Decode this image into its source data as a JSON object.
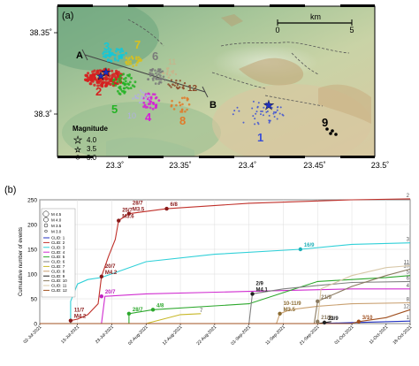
{
  "panel_a": {
    "label": "(a)",
    "lat_ticks": [
      "38.35˚",
      "38.3˚"
    ],
    "lon_ticks": [
      "23.3˚",
      "23.35˚",
      "23.4˚",
      "23.45˚",
      "23.5˚"
    ],
    "scale": {
      "unit": "km",
      "start": "0",
      "end": "5"
    },
    "profile": {
      "start": "A",
      "end": "B"
    },
    "magnitude_legend": {
      "title": "Magnitude",
      "items": [
        "4.0",
        "3.5",
        "3.0",
        "2.0"
      ]
    },
    "cluster_labels": [
      {
        "text": "1",
        "color": "#3a4fd6"
      },
      {
        "text": "2",
        "color": "#d62020"
      },
      {
        "text": "3",
        "color": "#14c8d8"
      },
      {
        "text": "4",
        "color": "#d620d6"
      },
      {
        "text": "5",
        "color": "#23b323"
      },
      {
        "text": "6",
        "color": "#7a7a7a"
      },
      {
        "text": "7",
        "color": "#d8c020"
      },
      {
        "text": "8",
        "color": "#e07a2a"
      },
      {
        "text": "9",
        "color": "#000000"
      },
      {
        "text": "10",
        "color": "#b0b0e0"
      },
      {
        "text": "11",
        "color": "#c9b28a"
      },
      {
        "text": "12",
        "color": "#8a4a2a"
      }
    ]
  },
  "chart_data": {
    "type": "line",
    "panel_label": "(b)",
    "ylabel": "Cumulative number of events",
    "xlabel": "",
    "ylim": [
      0,
      250
    ],
    "yticks": [
      "0",
      "50",
      "100",
      "150",
      "200",
      "250"
    ],
    "x_ticks": [
      "02-Jul-2021",
      "13-Jul-2021",
      "23-Jul-2021",
      "02-Aug-2021",
      "12-Aug-2021",
      "22-Aug-2021",
      "01-Sep-2021",
      "11-Sep-2021",
      "21-Sep-2021",
      "01-Oct-2021",
      "11-Oct-2021",
      "18-Oct-2021"
    ],
    "magnitude_legend": [
      "M 4.5",
      "M 4.0",
      "M 3.5",
      "M 3.0"
    ],
    "cluster_legend": [
      "CLID: 1",
      "CLID: 2",
      "CLID: 3",
      "CLID: 4",
      "CLID: 5",
      "CLID: 6",
      "CLID: 7",
      "CLID: 8",
      "CLID: 9",
      "CLID: 10",
      "CLID: 11",
      "CLID: 12"
    ],
    "series": [
      {
        "name": "CLID: 1",
        "color": "#2030c0",
        "end_label": "1",
        "points": [
          [
            "21-Sep-2021",
            0
          ],
          [
            "01-Oct-2021",
            2
          ],
          [
            "18-Oct-2021",
            5
          ]
        ]
      },
      {
        "name": "CLID: 2",
        "color": "#c0302a",
        "end_label": "2",
        "points": [
          [
            "02-Jul-2021",
            0
          ],
          [
            "11-Jul-2021",
            0
          ],
          [
            "11-Jul-2021",
            6
          ],
          [
            "13-Jul-2021",
            9
          ],
          [
            "16-Jul-2021",
            18
          ],
          [
            "19-Jul-2021",
            40
          ],
          [
            "20-Jul-2021",
            95
          ],
          [
            "22-Jul-2021",
            135
          ],
          [
            "24-Jul-2021",
            170
          ],
          [
            "25-Jul-2021",
            208
          ],
          [
            "28-Jul-2021",
            222
          ],
          [
            "08-Aug-2021",
            232
          ],
          [
            "01-Sep-2021",
            243
          ],
          [
            "01-Oct-2021",
            250
          ],
          [
            "18-Oct-2021",
            252
          ]
        ]
      },
      {
        "name": "CLID: 3",
        "color": "#30d0d8",
        "end_label": "3",
        "points": [
          [
            "02-Jul-2021",
            0
          ],
          [
            "11-Jul-2021",
            0
          ],
          [
            "11-Jul-2021",
            45
          ],
          [
            "13-Jul-2021",
            80
          ],
          [
            "16-Jul-2021",
            89
          ],
          [
            "20-Jul-2021",
            93
          ],
          [
            "02-Aug-2021",
            125
          ],
          [
            "22-Aug-2021",
            140
          ],
          [
            "16-Sep-2021",
            150
          ],
          [
            "01-Oct-2021",
            160
          ],
          [
            "18-Oct-2021",
            163
          ]
        ]
      },
      {
        "name": "CLID: 4",
        "color": "#d02cd0",
        "end_label": "4",
        "points": [
          [
            "02-Jul-2021",
            0
          ],
          [
            "20-Jul-2021",
            0
          ],
          [
            "21-Jul-2021",
            55
          ],
          [
            "02-Aug-2021",
            60
          ],
          [
            "01-Sep-2021",
            65
          ],
          [
            "01-Oct-2021",
            70
          ],
          [
            "18-Oct-2021",
            70
          ]
        ]
      },
      {
        "name": "CLID: 5",
        "color": "#2da82d",
        "end_label": "5",
        "points": [
          [
            "02-Jul-2021",
            0
          ],
          [
            "28-Jul-2021",
            0
          ],
          [
            "28-Jul-2021",
            20
          ],
          [
            "04-Aug-2021",
            28
          ],
          [
            "01-Sep-2021",
            40
          ],
          [
            "21-Sep-2021",
            85
          ],
          [
            "11-Oct-2021",
            93
          ],
          [
            "18-Oct-2021",
            97
          ]
        ]
      },
      {
        "name": "CLID: 6",
        "color": "#808080",
        "end_label": "6",
        "points": [
          [
            "02-Jul-2021",
            0
          ],
          [
            "01-Sep-2021",
            0
          ],
          [
            "02-Sep-2021",
            60
          ],
          [
            "11-Sep-2021",
            70
          ],
          [
            "21-Sep-2021",
            77
          ],
          [
            "01-Oct-2021",
            83
          ],
          [
            "18-Oct-2021",
            85
          ]
        ]
      },
      {
        "name": "CLID: 7",
        "color": "#c8b828",
        "end_label": "7",
        "points": [
          [
            "02-Jul-2021",
            0
          ],
          [
            "02-Aug-2021",
            0
          ],
          [
            "12-Aug-2021",
            18
          ],
          [
            "18-Aug-2021",
            20
          ]
        ]
      },
      {
        "name": "CLID: 8",
        "color": "#c9a070",
        "end_label": "8",
        "points": [
          [
            "02-Jul-2021",
            0
          ],
          [
            "09-Sep-2021",
            0
          ],
          [
            "10-Sep-2021",
            20
          ],
          [
            "13-Sep-2021",
            28
          ],
          [
            "21-Sep-2021",
            35
          ],
          [
            "01-Oct-2021",
            40
          ],
          [
            "18-Oct-2021",
            42
          ]
        ]
      },
      {
        "name": "CLID: 9",
        "color": "#202020",
        "end_label": "9",
        "points": [
          [
            "21-Sep-2021",
            0
          ],
          [
            "23-Sep-2021",
            2
          ],
          [
            "25-Sep-2021",
            4
          ]
        ]
      },
      {
        "name": "CLID: 10",
        "color": "#8a7a60",
        "end_label": "10",
        "points": [
          [
            "02-Jul-2021",
            0
          ],
          [
            "20-Sep-2021",
            0
          ],
          [
            "21-Sep-2021",
            45
          ],
          [
            "01-Oct-2021",
            75
          ],
          [
            "11-Oct-2021",
            97
          ],
          [
            "18-Oct-2021",
            110
          ]
        ]
      },
      {
        "name": "CLID: 11",
        "color": "#d8c8a8",
        "end_label": "11",
        "points": [
          [
            "02-Jul-2021",
            0
          ],
          [
            "21-Sep-2021",
            0
          ],
          [
            "22-Sep-2021",
            70
          ],
          [
            "01-Oct-2021",
            97
          ],
          [
            "11-Oct-2021",
            113
          ],
          [
            "18-Oct-2021",
            117
          ]
        ]
      },
      {
        "name": "CLID: 12",
        "color": "#a05020",
        "end_label": "12",
        "points": [
          [
            "02-Jul-2021",
            0
          ],
          [
            "01-Oct-2021",
            0
          ],
          [
            "03-Oct-2021",
            4
          ],
          [
            "11-Oct-2021",
            12
          ],
          [
            "18-Oct-2021",
            28
          ]
        ]
      }
    ],
    "annotations": [
      {
        "lines": [
          "11/7",
          "M4.2"
        ],
        "color": "#8a1a1a",
        "date": "11-Jul-2021",
        "value": 6
      },
      {
        "lines": [
          "20/7",
          "M4.2"
        ],
        "color": "#8a1a1a",
        "date": "20-Jul-2021",
        "value": 95
      },
      {
        "lines": [
          "20/7"
        ],
        "color": "#c020c0",
        "date": "20-Jul-2021",
        "value": 55
      },
      {
        "lines": [
          "28/7",
          "M3.5"
        ],
        "color": "#8a1a1a",
        "date": "28-Jul-2021",
        "value": 222
      },
      {
        "lines": [
          "25/7",
          "M3.6"
        ],
        "color": "#8a1a1a",
        "date": "25-Jul-2021",
        "value": 208
      },
      {
        "lines": [
          "28/7"
        ],
        "color": "#2da82d",
        "date": "28-Jul-2021",
        "value": 20
      },
      {
        "lines": [
          "4/8"
        ],
        "color": "#2da82d",
        "date": "04-Aug-2021",
        "value": 28
      },
      {
        "lines": [
          "6/8"
        ],
        "color": "#8a1a1a",
        "date": "08-Aug-2021",
        "value": 232
      },
      {
        "lines": [
          "16/9"
        ],
        "color": "#20b0b8",
        "date": "16-Sep-2021",
        "value": 150
      },
      {
        "lines": [
          "2/9",
          "M4.1"
        ],
        "color": "#202020",
        "date": "02-Sep-2021",
        "value": 60
      },
      {
        "lines": [
          "10-11/9",
          "M3.5"
        ],
        "color": "#8a6a30",
        "date": "10-Sep-2021",
        "value": 20
      },
      {
        "lines": [
          "21/9"
        ],
        "color": "#8a7a60",
        "date": "21-Sep-2021",
        "value": 45
      },
      {
        "lines": [
          "21/9"
        ],
        "color": "#8a7a60",
        "date": "21-Sep-2021",
        "value": 4
      },
      {
        "lines": [
          "23/9"
        ],
        "color": "#202020",
        "date": "23-Sep-2021",
        "value": 2
      },
      {
        "lines": [
          "3/10"
        ],
        "color": "#a05020",
        "date": "03-Oct-2021",
        "value": 4
      }
    ]
  }
}
